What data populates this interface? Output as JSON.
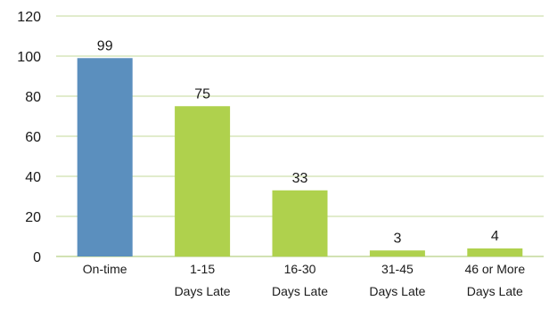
{
  "chart_data": {
    "type": "bar",
    "title": "",
    "xlabel": "",
    "ylabel": "",
    "categories": [
      [
        "On-time"
      ],
      [
        "1-15",
        "Days Late"
      ],
      [
        "16-30",
        "Days Late"
      ],
      [
        "31-45",
        "Days Late"
      ],
      [
        "46 or More",
        "Days Late"
      ]
    ],
    "values": [
      99,
      75,
      33,
      3,
      4
    ],
    "ylim": [
      0,
      120
    ],
    "yticks": [
      0,
      20,
      40,
      60,
      80,
      100,
      120
    ],
    "grid": true,
    "legend": "none",
    "colors": {
      "highlight": "#5b8fbe",
      "default": "#afd14d",
      "grid": "#c3d99a",
      "axis": "#c3d99a"
    },
    "highlight_index": 0
  }
}
